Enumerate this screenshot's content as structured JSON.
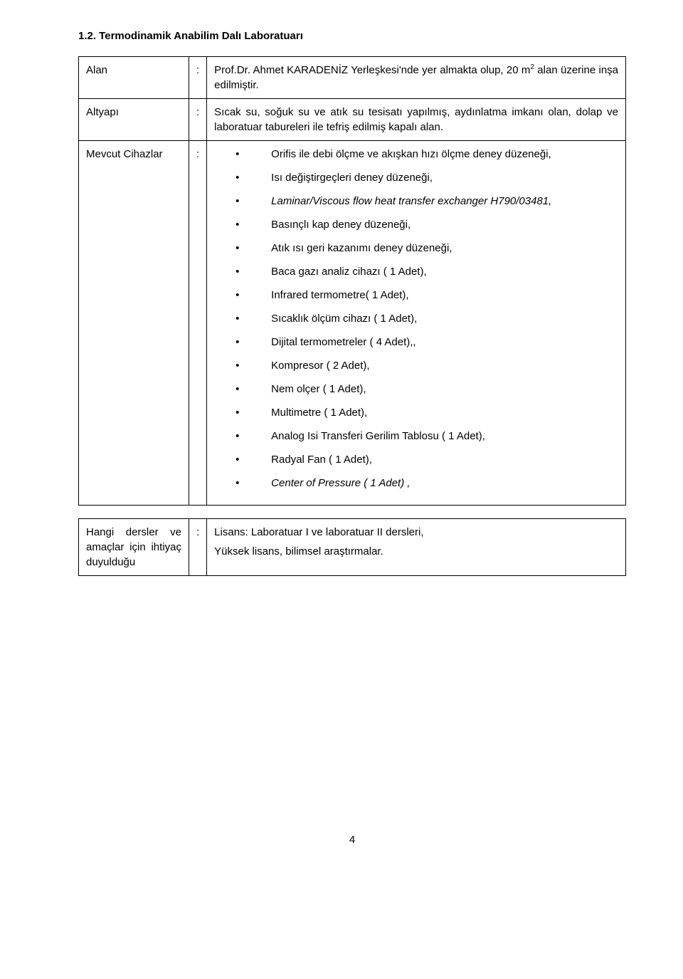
{
  "heading": "1.2. Termodinamik Anabilim Dalı Laboratuarı",
  "table1": {
    "rows": [
      {
        "label": "Alan",
        "content_html": "Prof.Dr. Ahmet KARADENİZ Yerleşkesi'nde yer almakta olup, 20 m<sup>2</sup> alan üzerine inşa edilmiştir."
      },
      {
        "label": "Altyapı",
        "content_html": "Sıcak su, soğuk su ve atık su tesisatı yapılmış, aydınlatma imkanı olan, dolap ve laboratuar tabureleri ile tefriş edilmiş kapalı alan."
      },
      {
        "label": "Mevcut Cihazlar",
        "bullets": [
          {
            "text": "Orifis ile debi ölçme ve akışkan hızı ölçme deney düzeneği,"
          },
          {
            "text": "Isı değiştirgeçleri deney düzeneği,"
          },
          {
            "text": "Laminar/Viscous flow heat transfer exchanger H790/03481,",
            "italic": true
          },
          {
            "text": "Basınçlı kap deney düzeneği,"
          },
          {
            "text": "Atık ısı geri kazanımı deney düzeneği,"
          },
          {
            "text": "Baca gazı analiz cihazı ( 1 Adet),"
          },
          {
            "text": "Infrared termometre( 1 Adet),"
          },
          {
            "text": "Sıcaklık ölçüm cihazı ( 1 Adet),"
          },
          {
            "text": "Dijital termometreler ( 4 Adet),,"
          },
          {
            "text": "Kompresor ( 2 Adet),"
          },
          {
            "text": "Nem olçer ( 1 Adet),"
          },
          {
            "text": "Multimetre ( 1 Adet),"
          },
          {
            "text": "Analog Isi Transferi Gerilim Tablosu ( 1 Adet),"
          },
          {
            "text": "Radyal Fan ( 1 Adet),"
          },
          {
            "text": "Center of Pressure ( 1 Adet) ,",
            "italic": true
          }
        ]
      }
    ]
  },
  "table2": {
    "label": "Hangi dersler ve amaçlar için ihtiyaç duyulduğu",
    "lines": [
      "Lisans: Laboratuar I ve laboratuar II dersleri,",
      "Yüksek lisans, bilimsel araştırmalar."
    ]
  },
  "page_number": "4"
}
